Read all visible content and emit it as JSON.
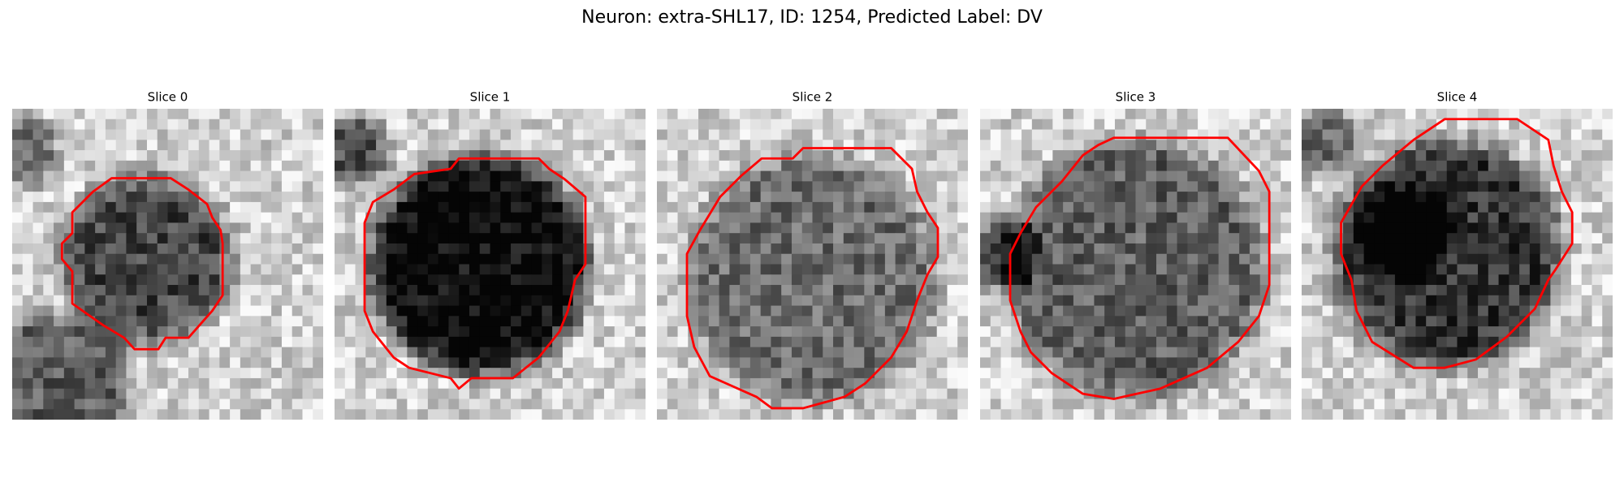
{
  "title": "Neuron: extra-SHL17, ID: 1254, Predicted Label: DV",
  "panels": [
    {
      "title": "Slice 0"
    },
    {
      "title": "Slice 1"
    },
    {
      "title": "Slice 2"
    },
    {
      "title": "Slice 3"
    },
    {
      "title": "Slice 4"
    }
  ]
}
